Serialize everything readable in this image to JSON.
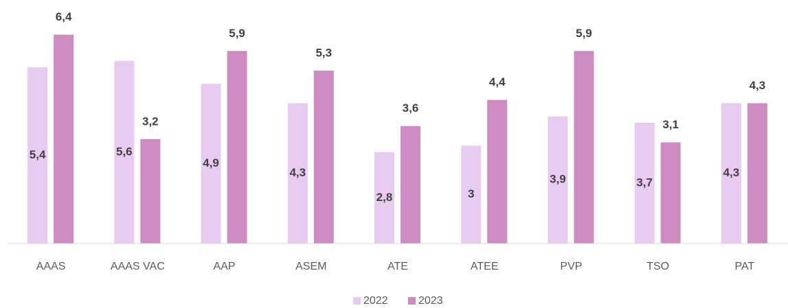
{
  "chart_data": {
    "type": "bar",
    "categories": [
      "AAAS",
      "AAAS VAC",
      "AAP",
      "ASEM",
      "ATE",
      "ATEE",
      "PVP",
      "TSO",
      "PAT"
    ],
    "series": [
      {
        "name": "2022",
        "color": "#e9cbf2",
        "values": [
          5.4,
          5.6,
          4.9,
          4.3,
          2.8,
          3,
          3.9,
          3.7,
          4.3
        ],
        "value_labels": [
          "5,4",
          "5,6",
          "4,9",
          "4,3",
          "2,8",
          "3",
          "3,9",
          "3,7",
          "4,3"
        ]
      },
      {
        "name": "2023",
        "color": "#cd8bc1",
        "values": [
          6.4,
          3.2,
          5.9,
          5.3,
          3.6,
          4.4,
          5.9,
          3.1,
          4.3
        ],
        "value_labels": [
          "6,4",
          "3,2",
          "5,9",
          "5,3",
          "3,6",
          "4,4",
          "5,9",
          "3,1",
          "4,3"
        ]
      }
    ],
    "ylim": [
      0,
      7
    ],
    "legend": "bottom"
  }
}
